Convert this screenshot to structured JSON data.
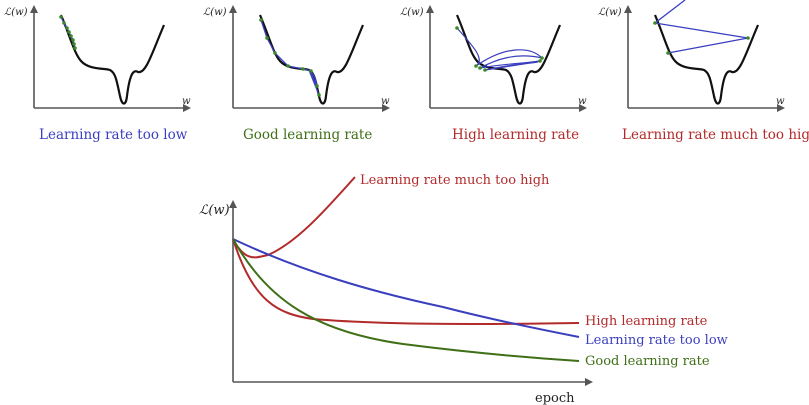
{
  "colors": {
    "low": "#3a3fbf",
    "good": "#3f6f16",
    "high": "#b22a2a",
    "much_high": "#b22a2a",
    "axis": "#555555",
    "point": "#3a8a2a"
  },
  "small_axis_y_label": "ℒ(w)",
  "small_axis_x_label": "w",
  "panels": [
    {
      "caption": "Learning rate too low"
    },
    {
      "caption": "Good learning rate"
    },
    {
      "caption": "High learning rate"
    },
    {
      "caption": "Learning rate much too high"
    }
  ],
  "big_plot": {
    "y_label": "ℒ(w)",
    "x_label": "epoch",
    "curves": {
      "much_high": "Learning rate much too high",
      "high": "High learning rate",
      "low": "Learning rate too low",
      "good": "Good learning rate"
    }
  }
}
